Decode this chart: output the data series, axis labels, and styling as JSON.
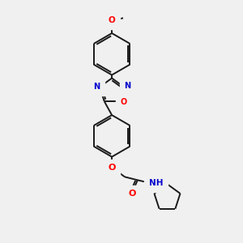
{
  "background_color": "#f0f0f0",
  "bond_color": "#1a1a1a",
  "atom_colors": {
    "N": "#0000cc",
    "O": "#ff0000",
    "C": "#1a1a1a"
  },
  "figsize": [
    3.0,
    3.0
  ],
  "dpi": 100,
  "lw": 1.4
}
